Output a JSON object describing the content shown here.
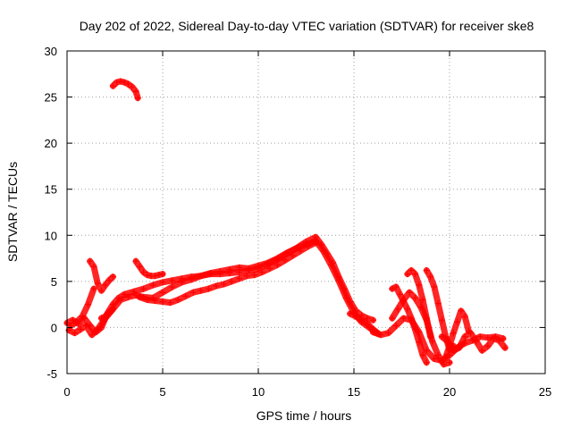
{
  "chart_data": {
    "type": "scatter",
    "title": "Day 202 of 2022, Sidereal Day-to-day VTEC variation (SDTVAR) for receiver ske8",
    "xlabel": "GPS time / hours",
    "ylabel": "SDTVAR / TECUs",
    "xlim": [
      0,
      25
    ],
    "ylim": [
      -5,
      30
    ],
    "xticks": [
      "0",
      "5",
      "10",
      "15",
      "20",
      "25"
    ],
    "yticks": [
      "-5",
      "0",
      "5",
      "10",
      "15",
      "20",
      "25",
      "30"
    ],
    "grid": true,
    "marker": "+",
    "series": [
      {
        "name": "SDTVAR",
        "color": "#ff0000",
        "segments": [
          {
            "x": [
              2.4,
              2.6,
              2.8,
              3.0,
              3.2,
              3.4,
              3.6,
              3.7
            ],
            "y": [
              26.2,
              26.6,
              26.7,
              26.6,
              26.4,
              26.1,
              25.6,
              24.9
            ]
          },
          {
            "x": [
              0.0,
              0.3,
              0.6,
              0.9,
              1.2,
              1.5,
              1.8,
              2.1,
              2.4,
              2.7,
              3.0,
              3.5,
              4.0,
              4.5,
              5.0,
              5.5,
              6.0,
              6.5,
              7.0,
              7.5,
              8.0,
              8.5,
              9.0,
              9.5,
              10.0,
              10.5,
              11.0,
              11.5,
              12.0,
              12.5,
              13.0,
              13.3,
              13.6,
              13.9,
              14.2,
              14.5,
              14.8,
              15.1,
              15.4,
              15.7,
              16.0
            ],
            "y": [
              0.5,
              0.8,
              0.4,
              1.0,
              0.2,
              -0.5,
              0.0,
              1.5,
              2.5,
              3.2,
              3.6,
              3.9,
              4.2,
              4.6,
              4.9,
              5.1,
              5.3,
              5.5,
              5.6,
              5.8,
              5.8,
              5.9,
              6.0,
              6.2,
              6.4,
              6.9,
              7.4,
              8.0,
              8.6,
              9.3,
              9.8,
              9.0,
              8.0,
              7.0,
              5.5,
              4.2,
              2.8,
              1.8,
              1.3,
              1.0,
              0.8
            ]
          },
          {
            "x": [
              0.1,
              0.4,
              0.7,
              1.0,
              1.3,
              1.6,
              2.0,
              2.4,
              2.8,
              3.2,
              3.6,
              4.0,
              4.5,
              5.0,
              5.5,
              6.0,
              6.5,
              7.0,
              7.5,
              8.0,
              8.5,
              9.0,
              9.5,
              10.0,
              10.5,
              11.0,
              11.5,
              12.0,
              12.5,
              13.0,
              13.4,
              13.8,
              14.2,
              14.6,
              15.0,
              15.4,
              15.8,
              16.2
            ],
            "y": [
              -0.3,
              -0.6,
              -0.2,
              0.2,
              -0.8,
              -0.2,
              1.0,
              2.0,
              3.0,
              3.3,
              3.5,
              3.3,
              3.2,
              3.8,
              4.4,
              4.9,
              5.2,
              5.6,
              5.9,
              6.1,
              6.3,
              6.5,
              6.4,
              6.7,
              7.0,
              7.5,
              8.1,
              8.6,
              9.0,
              9.4,
              8.3,
              6.8,
              5.1,
              3.2,
              1.6,
              0.6,
              0.0,
              -0.6
            ]
          },
          {
            "x": [
              0.2,
              0.5,
              0.8,
              1.1,
              1.4
            ],
            "y": [
              0.2,
              0.6,
              1.2,
              2.5,
              4.2
            ]
          },
          {
            "x": [
              1.2,
              1.4,
              1.6,
              1.8,
              2.0,
              2.2,
              2.4
            ],
            "y": [
              7.2,
              6.6,
              4.8,
              4.0,
              4.6,
              5.1,
              5.5
            ]
          },
          {
            "x": [
              3.6,
              3.8,
              4.0,
              4.2,
              4.4,
              4.6,
              4.8,
              5.0
            ],
            "y": [
              7.2,
              6.6,
              6.0,
              5.7,
              5.6,
              5.6,
              5.7,
              5.8
            ]
          },
          {
            "x": [
              3.8,
              4.2,
              4.6,
              5.0,
              5.4,
              5.8,
              6.2,
              6.6,
              7.0,
              7.4,
              7.8,
              8.2,
              8.6,
              9.0,
              9.4,
              9.8,
              10.2,
              10.6,
              11.0,
              11.4,
              11.8,
              12.2,
              12.6,
              13.0
            ],
            "y": [
              3.3,
              3.0,
              2.9,
              2.8,
              2.7,
              3.0,
              3.4,
              3.8,
              4.0,
              4.2,
              4.5,
              4.7,
              5.0,
              5.3,
              5.6,
              5.7,
              6.0,
              6.4,
              6.8,
              7.3,
              7.8,
              8.3,
              8.8,
              9.2
            ]
          },
          {
            "x": [
              1.8,
              2.0,
              2.2,
              2.4
            ],
            "y": [
              1.0,
              1.2,
              1.6,
              2.0
            ]
          },
          {
            "x": [
              16.0,
              16.4,
              16.8,
              17.2,
              17.6,
              18.0,
              18.4,
              18.8,
              19.2,
              19.6,
              20.0,
              20.4,
              20.8,
              21.2,
              21.6,
              22.0,
              22.4,
              22.8
            ],
            "y": [
              -0.5,
              -0.8,
              -0.6,
              0.2,
              1.0,
              0.8,
              -0.5,
              -2.5,
              -3.4,
              -3.6,
              -3.0,
              -2.2,
              -1.7,
              -1.4,
              -1.0,
              -1.1,
              -1.0,
              -1.2
            ]
          },
          {
            "x": [
              17.0,
              17.3,
              17.6,
              17.9,
              18.2,
              18.5,
              18.8,
              19.1,
              19.4,
              19.7,
              20.0
            ],
            "y": [
              1.0,
              2.0,
              3.0,
              3.8,
              3.2,
              2.2,
              0.8,
              -1.5,
              -3.0,
              -4.0,
              -3.8
            ]
          },
          {
            "x": [
              17.8,
              18.0,
              18.2,
              18.4,
              18.6,
              18.8,
              19.0
            ],
            "y": [
              5.8,
              6.2,
              5.8,
              4.6,
              3.0,
              1.0,
              -1.0
            ]
          },
          {
            "x": [
              18.8,
              19.0,
              19.2,
              19.4,
              19.6,
              19.8,
              20.0,
              20.2
            ],
            "y": [
              6.2,
              5.5,
              4.4,
              2.6,
              0.8,
              -1.0,
              -2.4,
              -2.0
            ]
          },
          {
            "x": [
              17.0,
              17.2,
              17.4,
              17.6,
              17.8,
              18.0,
              18.2,
              18.4,
              18.6,
              18.8
            ],
            "y": [
              4.2,
              4.4,
              3.6,
              2.8,
              2.0,
              1.0,
              -0.2,
              -1.6,
              -3.0,
              -3.8
            ]
          },
          {
            "x": [
              19.8,
              20.0,
              20.2,
              20.4,
              20.6,
              20.8,
              21.0
            ],
            "y": [
              -3.2,
              -2.0,
              -0.6,
              0.6,
              1.8,
              1.2,
              -0.4
            ]
          },
          {
            "x": [
              19.6,
              19.9,
              20.2,
              20.5,
              20.8,
              21.1,
              21.4,
              21.7,
              22.0,
              22.3,
              22.6,
              22.9
            ],
            "y": [
              -1.0,
              -1.5,
              -2.5,
              -2.2,
              -1.0,
              -0.6,
              -1.5,
              -2.5,
              -2.0,
              -1.2,
              -1.4,
              -2.2
            ]
          },
          {
            "x": [
              14.8,
              15.1,
              15.4,
              15.7,
              16.0,
              16.3
            ],
            "y": [
              1.5,
              1.2,
              0.8,
              0.4,
              -0.2,
              -0.7
            ]
          }
        ]
      }
    ]
  }
}
